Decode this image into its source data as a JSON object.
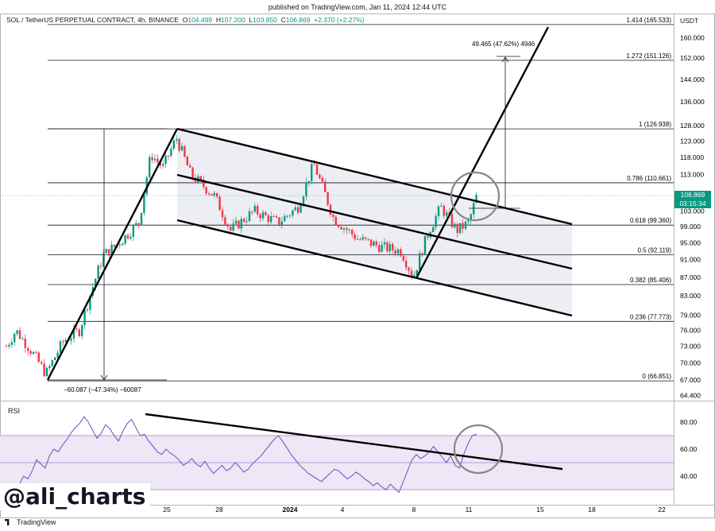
{
  "published": "published on TradingView.com, Jan 11, 2024 12:44 UTC",
  "header": {
    "symbol": "SOL / TetherUS PERPETUAL CONTRACT, 4h, BINANCE",
    "o_label": "O",
    "o_value": "104.499",
    "h_label": "H",
    "h_value": "107.200",
    "l_label": "L",
    "l_value": "103.850",
    "c_label": "C",
    "c_value": "106.869",
    "change": "+2.370 (+2.27%)"
  },
  "currency": "USDT",
  "price_tag": {
    "price": "106.869",
    "countdown": "03:15:34"
  },
  "rsi_label": "RSI",
  "watermark": "@ali_charts",
  "footer_brand": "TradingView",
  "colors": {
    "up": "#089981",
    "down": "#f23645",
    "rsi": "#7e57c2",
    "channel_fill": "#eceef3"
  },
  "chart_data": {
    "type": "candlestick",
    "price_axis": {
      "ticks": [
        "160.000",
        "152.000",
        "144.000",
        "136.000",
        "128.000",
        "123.000",
        "118.000",
        "113.000",
        "103.000",
        "99.000",
        "95.000",
        "91.000",
        "87.000",
        "83.000",
        "79.000",
        "76.000",
        "73.000",
        "70.000",
        "67.000",
        "64.400"
      ],
      "scale": "log"
    },
    "time_axis": {
      "ticks": [
        "25",
        "28",
        "2024",
        "4",
        "8",
        "11",
        "15",
        "18",
        "22"
      ]
    },
    "fib_levels": [
      {
        "ratio": "1.414",
        "price": "165.533",
        "label": "1.414 (165.533)"
      },
      {
        "ratio": "1.272",
        "price": "151.126",
        "label": "1.272 (151.126)"
      },
      {
        "ratio": "1",
        "price": "126.938",
        "label": "1 (126.938)"
      },
      {
        "ratio": "0.786",
        "price": "110.661",
        "label": "0.786 (110.661)"
      },
      {
        "ratio": "0.618",
        "price": "99.360",
        "label": "0.618 (99.360)"
      },
      {
        "ratio": "0.5",
        "price": "92.119",
        "label": "0.5 (92.119)"
      },
      {
        "ratio": "0.382",
        "price": "85.406",
        "label": "0.382 (85.406)"
      },
      {
        "ratio": "0.236",
        "price": "77.773",
        "label": "0.236 (77.773)"
      },
      {
        "ratio": "0",
        "price": "66.851",
        "label": "0 (66.851)"
      }
    ],
    "measure_down": "−60.087 (−47.34%) −60087",
    "measure_up": "49.465 (47.62%) 4946",
    "rsi_axis": {
      "ticks": [
        "80.00",
        "60.00",
        "40.00"
      ],
      "upper_band": 70,
      "lower_band": 30
    },
    "rsi": [
      30,
      33,
      28,
      34,
      40,
      38,
      44,
      52,
      49,
      46,
      55,
      60,
      58,
      63,
      67,
      72,
      76,
      79,
      84,
      80,
      74,
      68,
      72,
      78,
      75,
      70,
      66,
      73,
      79,
      82,
      76,
      70,
      71,
      66,
      62,
      58,
      56,
      60,
      57,
      55,
      52,
      48,
      50,
      53,
      49,
      47,
      51,
      46,
      42,
      45,
      48,
      44,
      46,
      50,
      47,
      43,
      45,
      49,
      52,
      55,
      59,
      63,
      67,
      70,
      66,
      61,
      56,
      52,
      48,
      45,
      42,
      40,
      38,
      36,
      39,
      42,
      45,
      44,
      41,
      38,
      40,
      43,
      41,
      38,
      36,
      33,
      35,
      32,
      30,
      34,
      31,
      28,
      36,
      44,
      52,
      56,
      53,
      55,
      58,
      62,
      58,
      54,
      50,
      55,
      48,
      46,
      56,
      64,
      70,
      71
    ]
  }
}
